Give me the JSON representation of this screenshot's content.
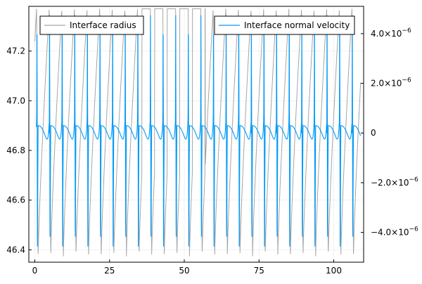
{
  "chart_data": {
    "type": "line",
    "grid": true,
    "x_axis": {
      "range": [
        -2,
        110
      ],
      "ticks": [
        0,
        25,
        50,
        75,
        100
      ],
      "tick_labels": [
        "0",
        "25",
        "50",
        "75",
        "100"
      ]
    },
    "y_left": {
      "range": [
        46.35,
        47.38
      ],
      "ticks": [
        46.4,
        46.6,
        46.8,
        47.0,
        47.2
      ],
      "tick_labels": [
        "46.4",
        "46.6",
        "46.8",
        "47.0",
        "47.2"
      ]
    },
    "y_right": {
      "range": [
        -5.2e-06,
        5.1e-06
      ],
      "ticks": [
        -4e-06,
        -2e-06,
        0,
        2e-06,
        4e-06
      ],
      "tick_labels": [
        {
          "mantissa": "−4.0×10",
          "exp": "−6"
        },
        {
          "mantissa": "−2.0×10",
          "exp": "−6"
        },
        {
          "mantissa": "0",
          "exp": ""
        },
        {
          "mantissa": "2.0×10",
          "exp": "−6"
        },
        {
          "mantissa": "4.0×10",
          "exp": "−6"
        }
      ]
    },
    "series": [
      {
        "name": "Interface radius",
        "color": "#a6a6a6",
        "axis": "left",
        "period": 4.22,
        "phase": 0.6,
        "max": 47.37,
        "min": 46.37,
        "plateau_start": 35,
        "plateau_end": 57
      },
      {
        "name": "Interface normal velocity",
        "color": "#009af9",
        "axis": "right",
        "period": 4.22,
        "phase": 0.6,
        "peak": 5e-06,
        "trough": -4.7e-06,
        "baseline": 3e-07,
        "x_end": 109
      }
    ],
    "legends": [
      {
        "position": "top-left",
        "entries": [
          "Interface radius"
        ]
      },
      {
        "position": "top-right",
        "entries": [
          "Interface normal velocity"
        ]
      }
    ]
  }
}
